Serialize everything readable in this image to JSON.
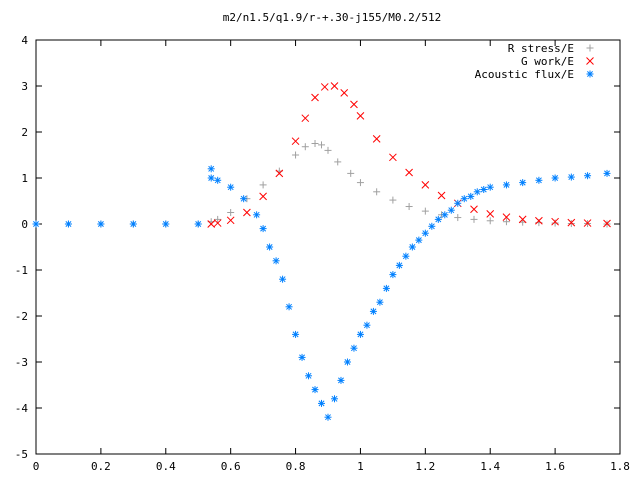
{
  "chart_data": {
    "type": "scatter",
    "title": "m2/n1.5/q1.9/r-+.30-j155/M0.2/512",
    "xlabel": "",
    "ylabel": "",
    "xlim": [
      0,
      1.8
    ],
    "ylim": [
      -5,
      4
    ],
    "x_ticks": [
      "0",
      "0.2",
      "0.4",
      "0.6",
      "0.8",
      "1",
      "1.2",
      "1.4",
      "1.6",
      "1.8"
    ],
    "y_ticks": [
      "4",
      "3",
      "2",
      "1",
      "0",
      "-1",
      "-2",
      "-3",
      "-4",
      "-5"
    ],
    "grid": false,
    "legend_position": "top-right",
    "series": [
      {
        "name": "R stress/E",
        "marker": "plus",
        "color": "#a0a0a0",
        "x": [
          0,
          0.1,
          0.2,
          0.3,
          0.4,
          0.5,
          0.54,
          0.56,
          0.6,
          0.65,
          0.7,
          0.75,
          0.8,
          0.83,
          0.86,
          0.88,
          0.9,
          0.93,
          0.97,
          1.0,
          1.05,
          1.1,
          1.15,
          1.2,
          1.25,
          1.3,
          1.35,
          1.4,
          1.45,
          1.5,
          1.55,
          1.6,
          1.65,
          1.7,
          1.76
        ],
        "y": [
          0,
          0,
          0,
          0,
          0,
          0,
          0.05,
          0.1,
          0.25,
          0.55,
          0.85,
          1.15,
          1.5,
          1.68,
          1.75,
          1.72,
          1.6,
          1.35,
          1.1,
          0.9,
          0.7,
          0.52,
          0.38,
          0.28,
          0.2,
          0.14,
          0.1,
          0.07,
          0.05,
          0.04,
          0.03,
          0.02,
          0.01,
          0.01,
          0.0
        ]
      },
      {
        "name": "G work/E",
        "marker": "cross",
        "color": "#ff0000",
        "x": [
          0.54,
          0.56,
          0.6,
          0.65,
          0.7,
          0.75,
          0.8,
          0.83,
          0.86,
          0.89,
          0.92,
          0.95,
          0.98,
          1.0,
          1.05,
          1.1,
          1.15,
          1.2,
          1.25,
          1.3,
          1.35,
          1.4,
          1.45,
          1.5,
          1.55,
          1.6,
          1.65,
          1.7,
          1.76
        ],
        "y": [
          0.0,
          0.02,
          0.08,
          0.25,
          0.6,
          1.1,
          1.8,
          2.3,
          2.75,
          2.98,
          3.0,
          2.85,
          2.6,
          2.35,
          1.85,
          1.45,
          1.12,
          0.85,
          0.62,
          0.45,
          0.32,
          0.22,
          0.15,
          0.1,
          0.07,
          0.05,
          0.03,
          0.02,
          0.01
        ]
      },
      {
        "name": "Acoustic flux/E",
        "marker": "star",
        "color": "#0080ff",
        "x": [
          0,
          0.1,
          0.2,
          0.3,
          0.4,
          0.5,
          0.54,
          0.54,
          0.56,
          0.6,
          0.64,
          0.68,
          0.7,
          0.72,
          0.74,
          0.76,
          0.78,
          0.8,
          0.82,
          0.84,
          0.86,
          0.88,
          0.9,
          0.92,
          0.94,
          0.96,
          0.98,
          1.0,
          1.02,
          1.04,
          1.06,
          1.08,
          1.1,
          1.12,
          1.14,
          1.16,
          1.18,
          1.2,
          1.22,
          1.24,
          1.26,
          1.28,
          1.3,
          1.32,
          1.34,
          1.36,
          1.38,
          1.4,
          1.45,
          1.5,
          1.55,
          1.6,
          1.65,
          1.7,
          1.76
        ],
        "y": [
          0,
          0,
          0,
          0,
          0,
          0,
          1.2,
          1.0,
          0.95,
          0.8,
          0.55,
          0.2,
          -0.1,
          -0.5,
          -0.8,
          -1.2,
          -1.8,
          -2.4,
          -2.9,
          -3.3,
          -3.6,
          -3.9,
          -4.2,
          -3.8,
          -3.4,
          -3.0,
          -2.7,
          -2.4,
          -2.2,
          -1.9,
          -1.7,
          -1.4,
          -1.1,
          -0.9,
          -0.7,
          -0.5,
          -0.35,
          -0.2,
          -0.05,
          0.1,
          0.2,
          0.3,
          0.45,
          0.55,
          0.6,
          0.7,
          0.75,
          0.8,
          0.85,
          0.9,
          0.95,
          1.0,
          1.02,
          1.05,
          1.1
        ]
      }
    ]
  }
}
